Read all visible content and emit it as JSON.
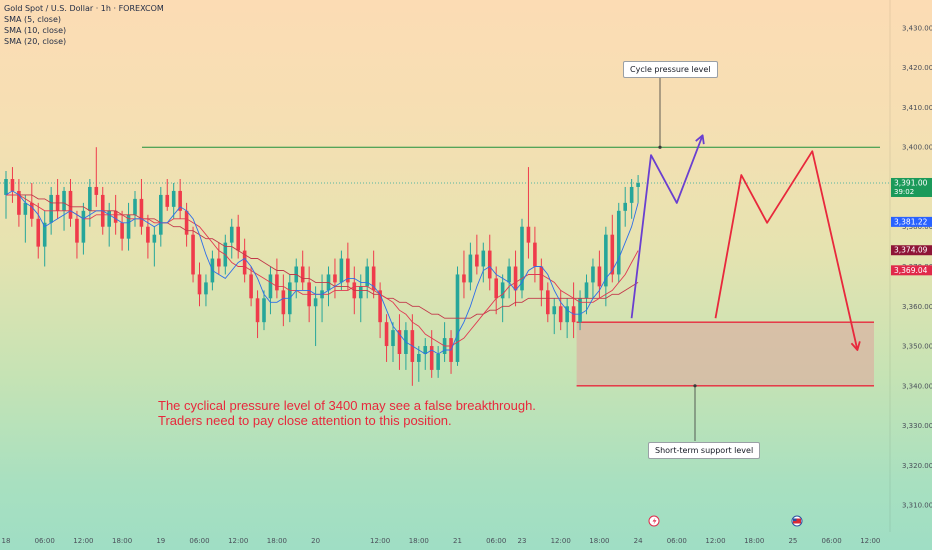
{
  "legend": {
    "title": "Gold Spot / U.S. Dollar · 1h · FOREXCOM",
    "indicators": [
      "SMA (5, close)",
      "SMA (10, close)",
      "SMA (20, close)"
    ]
  },
  "colors": {
    "up": "#26a69a",
    "down": "#ef3b4b",
    "sma5": "#2e6fe8",
    "sma10": "#e03a52",
    "sma20": "#c2384a",
    "horizontal_line": "#1f8f3a",
    "projection_purple": "#6a3fd0",
    "projection_red": "#e8283c",
    "zone_fill": "#d9b4a3",
    "zone_border": "#e8283c",
    "tag_current": "#1b9a5a",
    "tag_blue": "#2962ff",
    "tag_maroon": "#8e1437",
    "tag_red": "#e0294a"
  },
  "chart_data": {
    "type": "candlestick",
    "symbol": "XAUUSD",
    "timeframe": "1h",
    "ylim": [
      3305,
      3435
    ],
    "y_ticks": [
      3310,
      3320,
      3330,
      3340,
      3350,
      3360,
      3370,
      3380,
      3390,
      3400,
      3410,
      3420,
      3430
    ],
    "y_tick_labels": [
      "3,310.00",
      "3,320.00",
      "3,330.00",
      "3,340.00",
      "3,350.00",
      "3,360.00",
      "3,370.00",
      "3,380.00",
      "3,390.00",
      "3,400.00",
      "3,410.00",
      "3,420.00",
      "3,430.00"
    ],
    "x_labels": [
      "18",
      "06:00",
      "12:00",
      "18:00",
      "19",
      "06:00",
      "12:00",
      "18:00",
      "20",
      "12:00",
      "18:00",
      "21",
      "06:00",
      "23",
      "12:00",
      "18:00",
      "24",
      "06:00",
      "12:00",
      "18:00",
      "25",
      "06:00",
      "12:00"
    ],
    "x_label_index": [
      0,
      6,
      12,
      18,
      24,
      30,
      36,
      42,
      48,
      58,
      64,
      70,
      76,
      80,
      86,
      92,
      98,
      104,
      110,
      116,
      122,
      128,
      134
    ],
    "candles": [
      [
        3388,
        3394,
        3382,
        3392
      ],
      [
        3392,
        3395,
        3386,
        3389
      ],
      [
        3389,
        3392,
        3380,
        3383
      ],
      [
        3383,
        3388,
        3376,
        3386
      ],
      [
        3386,
        3391,
        3380,
        3382
      ],
      [
        3382,
        3386,
        3372,
        3375
      ],
      [
        3375,
        3384,
        3370,
        3381
      ],
      [
        3381,
        3390,
        3378,
        3388
      ],
      [
        3388,
        3392,
        3382,
        3384
      ],
      [
        3384,
        3390,
        3379,
        3389
      ],
      [
        3389,
        3392,
        3380,
        3382
      ],
      [
        3382,
        3384,
        3372,
        3376
      ],
      [
        3376,
        3386,
        3373,
        3384
      ],
      [
        3384,
        3392,
        3380,
        3390
      ],
      [
        3390,
        3400,
        3385,
        3388
      ],
      [
        3388,
        3390,
        3378,
        3380
      ],
      [
        3380,
        3386,
        3375,
        3384
      ],
      [
        3384,
        3388,
        3378,
        3381
      ],
      [
        3381,
        3384,
        3374,
        3377
      ],
      [
        3377,
        3386,
        3374,
        3383
      ],
      [
        3383,
        3389,
        3380,
        3387
      ],
      [
        3387,
        3392,
        3378,
        3380
      ],
      [
        3380,
        3383,
        3372,
        3376
      ],
      [
        3376,
        3380,
        3370,
        3378
      ],
      [
        3378,
        3390,
        3375,
        3388
      ],
      [
        3388,
        3392,
        3384,
        3385
      ],
      [
        3385,
        3391,
        3382,
        3389
      ],
      [
        3389,
        3392,
        3382,
        3384
      ],
      [
        3384,
        3386,
        3375,
        3378
      ],
      [
        3378,
        3380,
        3366,
        3368
      ],
      [
        3368,
        3371,
        3360,
        3363
      ],
      [
        3363,
        3368,
        3360,
        3366
      ],
      [
        3366,
        3374,
        3364,
        3372
      ],
      [
        3372,
        3376,
        3368,
        3370
      ],
      [
        3370,
        3378,
        3368,
        3376
      ],
      [
        3376,
        3382,
        3372,
        3380
      ],
      [
        3380,
        3383,
        3372,
        3374
      ],
      [
        3374,
        3377,
        3366,
        3368
      ],
      [
        3368,
        3370,
        3360,
        3362
      ],
      [
        3362,
        3364,
        3352,
        3356
      ],
      [
        3356,
        3364,
        3354,
        3362
      ],
      [
        3362,
        3370,
        3358,
        3368
      ],
      [
        3368,
        3372,
        3362,
        3364
      ],
      [
        3364,
        3368,
        3355,
        3358
      ],
      [
        3358,
        3368,
        3356,
        3366
      ],
      [
        3366,
        3372,
        3362,
        3370
      ],
      [
        3370,
        3374,
        3364,
        3366
      ],
      [
        3366,
        3370,
        3356,
        3360
      ],
      [
        3360,
        3365,
        3350,
        3362
      ],
      [
        3362,
        3368,
        3356,
        3364
      ],
      [
        3364,
        3370,
        3360,
        3368
      ],
      [
        3368,
        3372,
        3362,
        3366
      ],
      [
        3366,
        3374,
        3364,
        3372
      ],
      [
        3372,
        3376,
        3364,
        3366
      ],
      [
        3366,
        3370,
        3358,
        3362
      ],
      [
        3362,
        3368,
        3356,
        3365
      ],
      [
        3365,
        3372,
        3362,
        3370
      ],
      [
        3370,
        3374,
        3362,
        3364
      ],
      [
        3364,
        3366,
        3352,
        3356
      ],
      [
        3356,
        3358,
        3346,
        3350
      ],
      [
        3350,
        3356,
        3346,
        3354
      ],
      [
        3354,
        3358,
        3344,
        3348
      ],
      [
        3348,
        3356,
        3344,
        3354
      ],
      [
        3354,
        3358,
        3340,
        3346
      ],
      [
        3346,
        3350,
        3341,
        3348
      ],
      [
        3348,
        3352,
        3344,
        3350
      ],
      [
        3350,
        3354,
        3342,
        3344
      ],
      [
        3344,
        3350,
        3342,
        3348
      ],
      [
        3348,
        3356,
        3346,
        3352
      ],
      [
        3352,
        3354,
        3343,
        3346
      ],
      [
        3346,
        3370,
        3345,
        3368
      ],
      [
        3368,
        3374,
        3362,
        3366
      ],
      [
        3366,
        3376,
        3364,
        3373
      ],
      [
        3373,
        3378,
        3368,
        3370
      ],
      [
        3370,
        3376,
        3366,
        3374
      ],
      [
        3374,
        3378,
        3364,
        3367
      ],
      [
        3367,
        3370,
        3358,
        3362
      ],
      [
        3362,
        3368,
        3356,
        3366
      ],
      [
        3366,
        3372,
        3362,
        3370
      ],
      [
        3370,
        3374,
        3360,
        3364
      ],
      [
        3364,
        3382,
        3362,
        3380
      ],
      [
        3380,
        3395,
        3372,
        3376
      ],
      [
        3376,
        3380,
        3366,
        3370
      ],
      [
        3370,
        3372,
        3360,
        3364
      ],
      [
        3364,
        3366,
        3356,
        3358
      ],
      [
        3358,
        3362,
        3353,
        3360
      ],
      [
        3360,
        3364,
        3354,
        3356
      ],
      [
        3356,
        3362,
        3352,
        3360
      ],
      [
        3360,
        3366,
        3352,
        3356
      ],
      [
        3356,
        3364,
        3354,
        3362
      ],
      [
        3362,
        3368,
        3358,
        3366
      ],
      [
        3366,
        3372,
        3362,
        3370
      ],
      [
        3370,
        3374,
        3362,
        3365
      ],
      [
        3365,
        3380,
        3360,
        3378
      ],
      [
        3378,
        3383,
        3366,
        3368
      ],
      [
        3368,
        3386,
        3366,
        3384
      ],
      [
        3384,
        3390,
        3380,
        3386
      ],
      [
        3386,
        3392,
        3382,
        3390
      ],
      [
        3390,
        3393,
        3386,
        3391
      ]
    ],
    "sma5": [
      3388,
      3389,
      3388,
      3386,
      3385,
      3383,
      3380,
      3381,
      3382,
      3383,
      3384,
      3383,
      3382,
      3383,
      3384,
      3384,
      3383,
      3382,
      3381,
      3381,
      3382,
      3382,
      3381,
      3380,
      3381,
      3381,
      3383,
      3385,
      3384,
      3382,
      3378,
      3373,
      3369,
      3368,
      3367,
      3369,
      3371,
      3372,
      3370,
      3367,
      3363,
      3361,
      3361,
      3362,
      3362,
      3364,
      3364,
      3364,
      3363,
      3363,
      3364,
      3365,
      3366,
      3367,
      3367,
      3366,
      3366,
      3365,
      3363,
      3359,
      3355,
      3353,
      3351,
      3350,
      3349,
      3348,
      3349,
      3348,
      3349,
      3349,
      3353,
      3356,
      3360,
      3365,
      3369,
      3370,
      3368,
      3367,
      3366,
      3364,
      3366,
      3369,
      3370,
      3370,
      3368,
      3364,
      3361,
      3359,
      3358,
      3358,
      3359,
      3362,
      3364,
      3367,
      3369,
      3372,
      3376,
      3380,
      3386
    ],
    "sma10": [
      3388,
      3388,
      3388,
      3387,
      3386,
      3385,
      3384,
      3384,
      3384,
      3384,
      3384,
      3383,
      3382,
      3382,
      3383,
      3383,
      3383,
      3383,
      3383,
      3382,
      3382,
      3382,
      3382,
      3381,
      3381,
      3381,
      3382,
      3382,
      3382,
      3381,
      3380,
      3378,
      3376,
      3374,
      3373,
      3371,
      3370,
      3370,
      3369,
      3368,
      3367,
      3366,
      3365,
      3365,
      3364,
      3364,
      3363,
      3363,
      3363,
      3363,
      3363,
      3364,
      3364,
      3364,
      3365,
      3365,
      3365,
      3364,
      3363,
      3362,
      3361,
      3359,
      3358,
      3356,
      3355,
      3353,
      3352,
      3351,
      3350,
      3350,
      3351,
      3352,
      3354,
      3356,
      3358,
      3360,
      3362,
      3363,
      3365,
      3366,
      3367,
      3368,
      3368,
      3368,
      3367,
      3366,
      3364,
      3363,
      3362,
      3361,
      3361,
      3361,
      3362,
      3363,
      3364,
      3366,
      3368,
      3371,
      3374
    ],
    "sma20": [
      3388,
      3388,
      3388,
      3388,
      3388,
      3387,
      3387,
      3386,
      3386,
      3386,
      3385,
      3385,
      3385,
      3384,
      3384,
      3384,
      3384,
      3384,
      3383,
      3383,
      3383,
      3382,
      3382,
      3382,
      3381,
      3381,
      3380,
      3380,
      3379,
      3379,
      3378,
      3377,
      3377,
      3376,
      3375,
      3375,
      3374,
      3373,
      3372,
      3372,
      3371,
      3370,
      3369,
      3369,
      3368,
      3368,
      3367,
      3367,
      3366,
      3366,
      3366,
      3365,
      3365,
      3365,
      3364,
      3364,
      3364,
      3363,
      3363,
      3362,
      3362,
      3361,
      3361,
      3360,
      3360,
      3359,
      3358,
      3358,
      3357,
      3357,
      3357,
      3357,
      3357,
      3358,
      3358,
      3359,
      3359,
      3360,
      3360,
      3361,
      3361,
      3362,
      3362,
      3362,
      3362,
      3362,
      3362,
      3362,
      3362,
      3362,
      3362,
      3362,
      3362,
      3362,
      3363,
      3363,
      3364,
      3365,
      3366
    ],
    "horizontal_line": {
      "value": 3400
    },
    "support_zone": {
      "from": 3340,
      "to": 3356,
      "start_index": 88
    },
    "projection_purple": [
      [
        97,
        3357
      ],
      [
        100,
        3398
      ],
      [
        104,
        3386
      ],
      [
        108,
        3403
      ]
    ],
    "projection_red": [
      [
        110,
        3357
      ],
      [
        114,
        3393
      ],
      [
        118,
        3381
      ],
      [
        125,
        3399
      ],
      [
        132,
        3349
      ]
    ],
    "price_tags": [
      {
        "value": 3391.0,
        "label": "3,391.00",
        "sub": "39:02",
        "color": "tag_current"
      },
      {
        "value": 3381.22,
        "label": "3,381.22",
        "color": "tag_blue"
      },
      {
        "value": 3374.09,
        "label": "3,374.09",
        "color": "tag_maroon"
      },
      {
        "value": 3369.04,
        "label": "3,369.04",
        "color": "tag_red"
      }
    ],
    "annotations": {
      "text_line1": "The cyclical pressure level of 3400 may see a false breakthrough.",
      "text_line2": "Traders need to pay close attention to this position.",
      "cycle_label": "Cycle pressure level",
      "support_label": "Short-term support level"
    }
  }
}
